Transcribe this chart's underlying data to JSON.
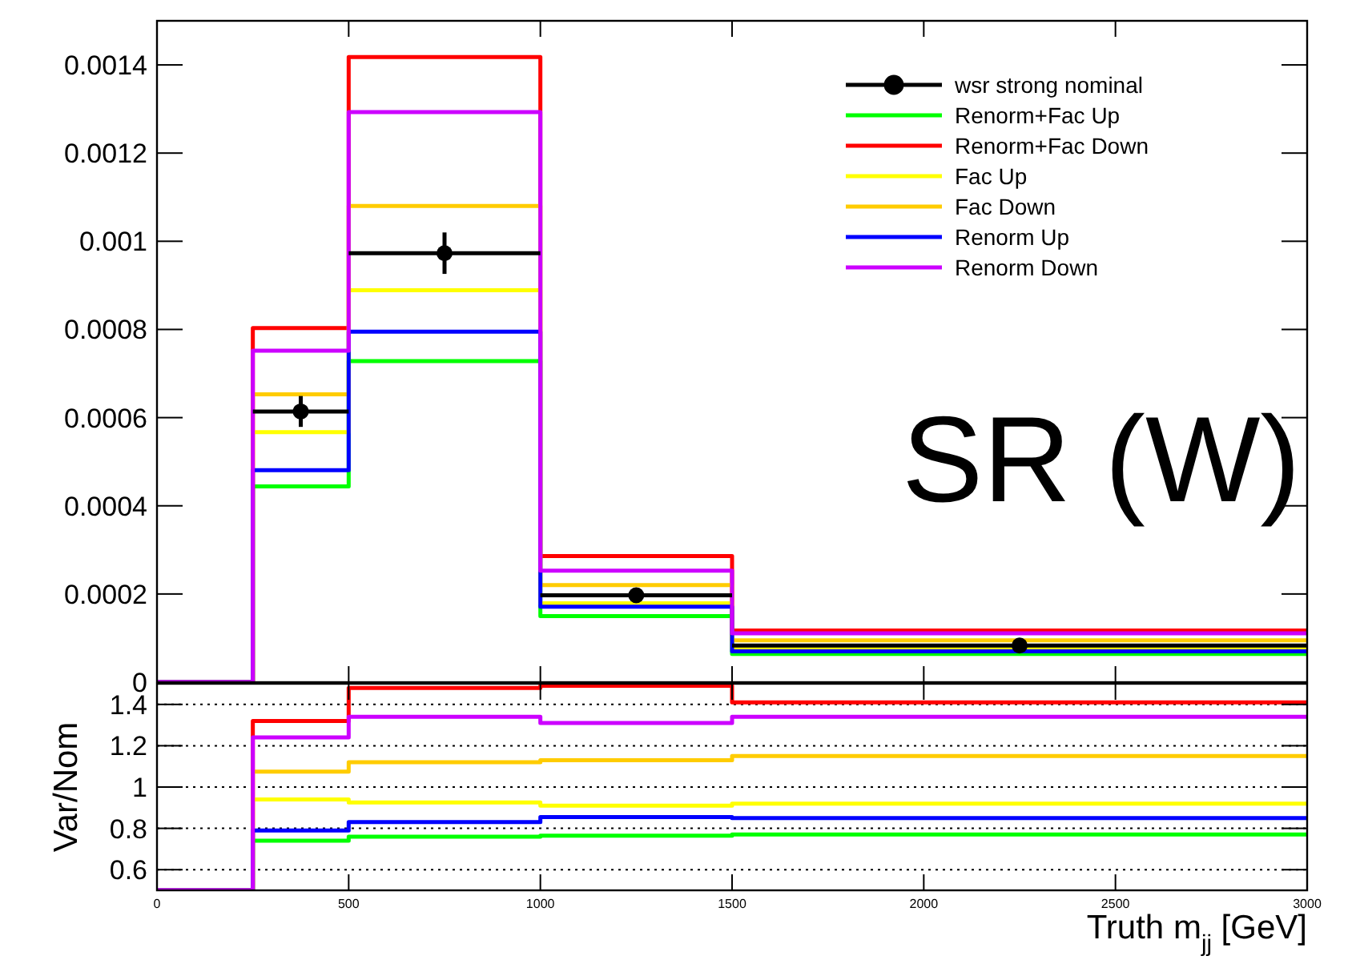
{
  "chart_data": [
    {
      "type": "histogram",
      "bins": [
        0,
        250,
        500,
        1000,
        1500,
        3000
      ],
      "xlim": [
        0,
        3000
      ],
      "xticks": [
        {
          "value": 0,
          "label": null
        },
        {
          "value": 500,
          "label": null
        },
        {
          "value": 1000,
          "label": null
        },
        {
          "value": 1500,
          "label": null
        },
        {
          "value": 2000,
          "label": null
        },
        {
          "value": 2500,
          "label": null
        },
        {
          "value": 3000,
          "label": null
        }
      ],
      "ylim": [
        0,
        0.0015
      ],
      "yticks": [
        0,
        0.0002,
        0.0004,
        0.0006,
        0.0008,
        0.001,
        0.0012,
        0.0014
      ],
      "tick_labels": "y",
      "legend": "top right",
      "grid": false,
      "annotations": [
        "SR (W)"
      ],
      "series": [
        {
          "name": "wsr strong nominal",
          "type": "scatter",
          "marker": "circle",
          "color": "#000000",
          "x": [
            375,
            750,
            1250,
            2250
          ],
          "values": [
            0.000614,
            0.000973,
            0.000197,
            8.3e-05
          ],
          "errors": [
            3.5e-05,
            4.7e-05,
            1.2e-05,
            null
          ],
          "xerrors": [
            125,
            250,
            250,
            750
          ]
        },
        {
          "name": "Renorm+Fac Up",
          "color": "#00ff00",
          "values": [
            0,
            0.000444,
            0.000728,
            0.00015,
            6.4e-05
          ]
        },
        {
          "name": "Renorm+Fac Down",
          "color": "#ff0000",
          "values": [
            0,
            0.000803,
            0.001418,
            0.000286,
            0.000117
          ]
        },
        {
          "name": "Fac Up",
          "color": "#ffff00",
          "values": [
            0,
            0.000567,
            0.000889,
            0.000179,
            7.6e-05
          ]
        },
        {
          "name": "Fac Down",
          "color": "#ffcc00",
          "values": [
            0,
            0.000653,
            0.00108,
            0.00022,
            9.5e-05
          ]
        },
        {
          "name": "Renorm Up",
          "color": "#0000ff",
          "values": [
            0,
            0.000481,
            0.000795,
            0.000171,
            7e-05
          ]
        },
        {
          "name": "Renorm Down",
          "color": "#cc00ff",
          "values": [
            0,
            0.000752,
            0.001293,
            0.000253,
            0.000111
          ]
        }
      ]
    },
    {
      "type": "histogram",
      "bins": [
        0,
        250,
        500,
        1000,
        1500,
        3000
      ],
      "xlim": [
        0,
        3000
      ],
      "xticks": [
        0,
        500,
        1000,
        1500,
        2000,
        2500,
        3000
      ],
      "ylim": [
        0.5,
        1.5
      ],
      "yticks": [
        0.6,
        0.8,
        1,
        1.2,
        1.4
      ],
      "grid": "y",
      "xlabel": "Truth m$_{jj}$ [GeV]",
      "ylabel": "Var/Nom",
      "series": [
        {
          "color": "#00ff00",
          "values": [
            0.5,
            0.74,
            0.76,
            0.765,
            0.77
          ]
        },
        {
          "color": "#ff0000",
          "values": [
            0.5,
            1.32,
            1.48,
            1.49,
            1.41
          ]
        },
        {
          "color": "#ffff00",
          "values": [
            0.5,
            0.94,
            0.925,
            0.91,
            0.92
          ]
        },
        {
          "color": "#ffcc00",
          "values": [
            0.5,
            1.075,
            1.12,
            1.13,
            1.15
          ]
        },
        {
          "color": "#0000ff",
          "values": [
            0.5,
            0.79,
            0.83,
            0.855,
            0.85
          ]
        },
        {
          "color": "#cc00ff",
          "values": [
            0.5,
            1.24,
            1.34,
            1.31,
            1.34
          ]
        }
      ]
    }
  ]
}
